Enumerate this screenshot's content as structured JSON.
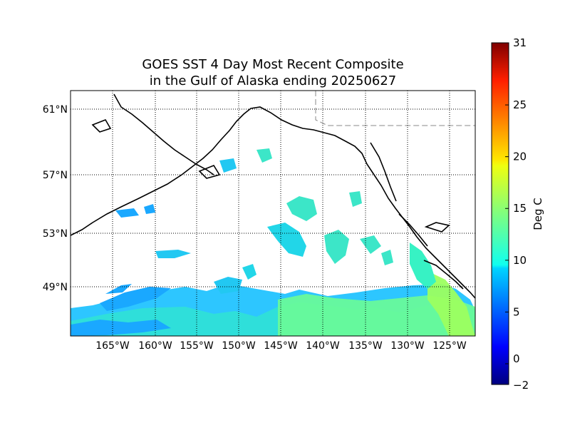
{
  "title": {
    "line1": "GOES SST 4 Day Most Recent Composite",
    "line2": "in the Gulf of Alaska ending 20250627"
  },
  "map": {
    "lat_labels": [
      "61°N",
      "57°N",
      "53°N",
      "49°N"
    ],
    "lon_labels": [
      "165°W",
      "160°W",
      "155°W",
      "150°W",
      "145°W",
      "140°W",
      "135°W",
      "130°W",
      "125°W"
    ],
    "lat_values": [
      61,
      57,
      53,
      49
    ],
    "lon_values": [
      -165,
      -160,
      -155,
      -150,
      -145,
      -140,
      -135,
      -130,
      -125
    ],
    "grid": "dotted",
    "land_color": "#ffffff",
    "coast_color": "#000000"
  },
  "colorbar": {
    "label": "Deg C",
    "ticks": [
      "31",
      "25",
      "20",
      "15",
      "10",
      "5",
      "0",
      "−2"
    ],
    "tick_values": [
      31,
      25,
      20,
      15,
      10,
      5,
      0,
      -2
    ],
    "min": -2,
    "max": 31,
    "colormap": "jet"
  }
}
